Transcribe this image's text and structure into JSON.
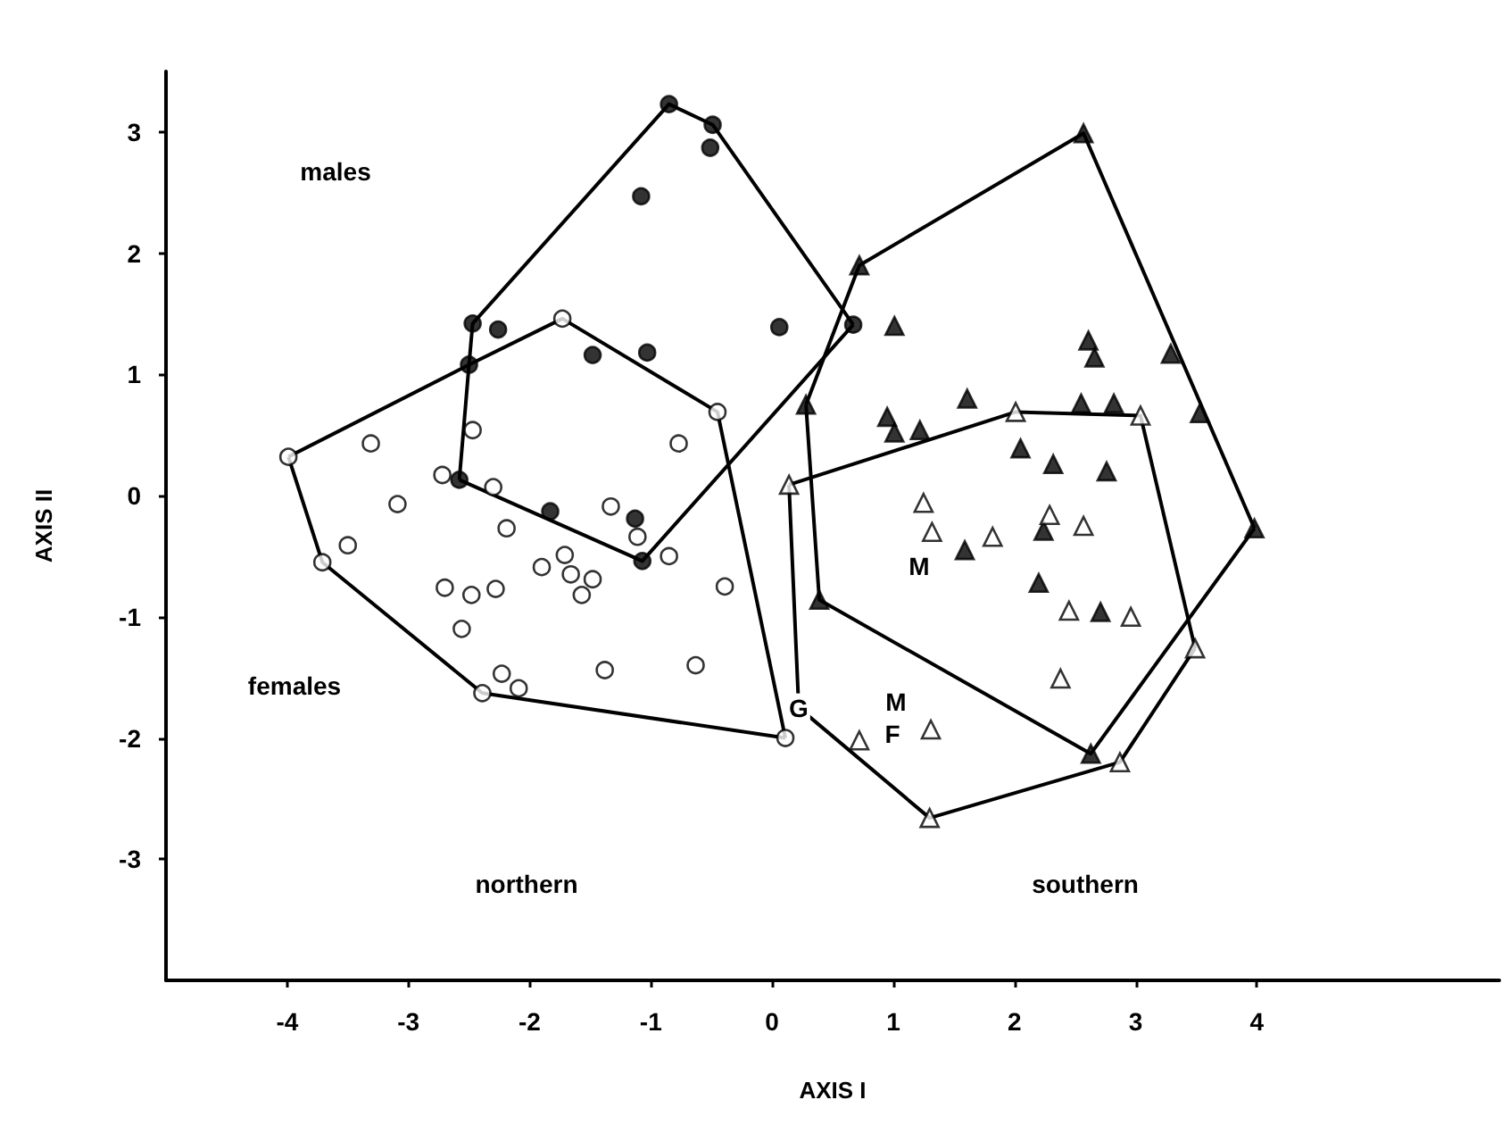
{
  "chart_data": {
    "type": "scatter",
    "xlabel": "AXIS I",
    "ylabel": "AXIS II",
    "xlim": [
      -5,
      6
    ],
    "ylim": [
      -4,
      3.5
    ],
    "xticks": [
      -4,
      -3,
      -2,
      -1,
      0,
      1,
      2,
      3,
      4
    ],
    "yticks": [
      -3,
      -2,
      -1,
      0,
      1,
      2,
      3
    ],
    "grid": false,
    "series": [
      {
        "marker": "circle",
        "color": "#000000",
        "x": [
          -0.85,
          -0.49,
          -0.51,
          -1.08,
          -2.47,
          -2.26,
          -2.5,
          -1.48,
          -1.03,
          0.06,
          0.67,
          -2.58,
          -1.83,
          -1.13,
          -1.07
        ],
        "values": [
          3.23,
          3.06,
          2.87,
          2.47,
          1.42,
          1.37,
          1.08,
          1.16,
          1.18,
          1.39,
          1.41,
          0.13,
          -0.13,
          -0.19,
          -0.54
        ]
      },
      {
        "marker": "circle",
        "color": "#ffffff",
        "x": [
          -1.73,
          -0.45,
          -0.77,
          -3.31,
          -3.99,
          -2.47,
          -2.72,
          -2.3,
          -3.09,
          -1.33,
          -2.19,
          -1.11,
          -3.5,
          -3.71,
          -1.71,
          -0.85,
          -1.9,
          -1.66,
          -1.48,
          -1.57,
          -2.7,
          -2.48,
          -2.28,
          -0.39,
          -2.56,
          -0.63,
          -1.38,
          -2.23,
          -2.09,
          -2.39,
          0.11
        ],
        "values": [
          1.46,
          0.69,
          0.43,
          0.43,
          0.32,
          0.54,
          0.17,
          0.07,
          -0.07,
          -0.09,
          -0.27,
          -0.34,
          -0.41,
          -0.55,
          -0.49,
          -0.5,
          -0.59,
          -0.65,
          -0.69,
          -0.82,
          -0.76,
          -0.82,
          -0.77,
          -0.75,
          -1.1,
          -1.4,
          -1.44,
          -1.47,
          -1.59,
          -1.63,
          -2.0
        ]
      },
      {
        "marker": "triangle",
        "color": "#000000",
        "x": [
          2.57,
          0.72,
          1.01,
          2.61,
          2.66,
          3.29,
          1.61,
          0.28,
          2.55,
          2.82,
          3.53,
          0.95,
          1.01,
          1.22,
          2.05,
          2.32,
          2.76,
          2.24,
          1.59,
          2.2,
          2.71,
          3.98,
          0.39,
          2.63
        ],
        "values": [
          2.99,
          1.9,
          1.4,
          1.28,
          1.14,
          1.17,
          0.8,
          0.75,
          0.76,
          0.76,
          0.68,
          0.65,
          0.52,
          0.54,
          0.39,
          0.26,
          0.2,
          -0.29,
          -0.45,
          -0.72,
          -0.96,
          -0.27,
          -0.86,
          -2.13
        ]
      },
      {
        "marker": "triangle",
        "color": "#ffffff",
        "x": [
          2.01,
          3.04,
          0.14,
          1.25,
          1.32,
          1.82,
          2.29,
          2.57,
          2.45,
          2.96,
          3.49,
          2.38,
          0.72,
          1.31,
          2.87,
          1.3
        ],
        "values": [
          0.69,
          0.66,
          0.09,
          -0.06,
          -0.3,
          -0.34,
          -0.16,
          -0.25,
          -0.95,
          -1.0,
          -1.26,
          -1.51,
          -2.02,
          -1.93,
          -2.2,
          -2.66
        ]
      },
      {
        "type": "line",
        "marker": "none",
        "color": "#000000",
        "x": [
          -2.58,
          -2.5,
          -2.47,
          -0.85,
          -0.49,
          0.67
        ],
        "values": [
          0.13,
          1.08,
          1.42,
          3.23,
          3.06,
          1.41
        ]
      },
      {
        "type": "line",
        "marker": "none",
        "color": "#000000",
        "x": [
          -2.58,
          -1.07,
          0.67
        ],
        "values": [
          0.13,
          -0.54,
          1.41
        ]
      },
      {
        "type": "line",
        "marker": "none",
        "color": "#000000",
        "x": [
          -3.99,
          -2.5,
          -1.73,
          -0.45,
          0.11
        ],
        "values": [
          0.32,
          1.08,
          1.46,
          0.69,
          -2.0
        ]
      },
      {
        "type": "line",
        "marker": "none",
        "color": "#000000",
        "x": [
          -3.99,
          -3.71,
          -2.39,
          0.11
        ],
        "values": [
          0.32,
          -0.55,
          -1.63,
          -2.0
        ]
      },
      {
        "type": "line",
        "marker": "none",
        "color": "#000000",
        "x": [
          0.28,
          0.72,
          2.57,
          3.98
        ],
        "values": [
          0.75,
          1.9,
          2.99,
          -0.27
        ]
      },
      {
        "type": "line",
        "marker": "none",
        "color": "#000000",
        "x": [
          0.28,
          0.39,
          2.63,
          3.98
        ],
        "values": [
          0.75,
          -0.86,
          -2.13,
          -0.27
        ]
      },
      {
        "type": "line",
        "marker": "none",
        "color": "#000000",
        "x": [
          0.14,
          2.01,
          3.04,
          3.49
        ],
        "values": [
          0.09,
          0.69,
          0.66,
          -1.26
        ]
      },
      {
        "type": "line",
        "marker": "none",
        "color": "#000000",
        "x": [
          0.14,
          0.22,
          1.3,
          2.87,
          3.49
        ],
        "values": [
          0.09,
          -1.75,
          -2.66,
          -2.2,
          -1.26
        ]
      }
    ],
    "annotations": [
      "males",
      "females",
      "northern",
      "southern",
      "M",
      "M",
      "F",
      {
        "text": "G",
        "x": 0.22,
        "y": -1.75
      }
    ]
  }
}
